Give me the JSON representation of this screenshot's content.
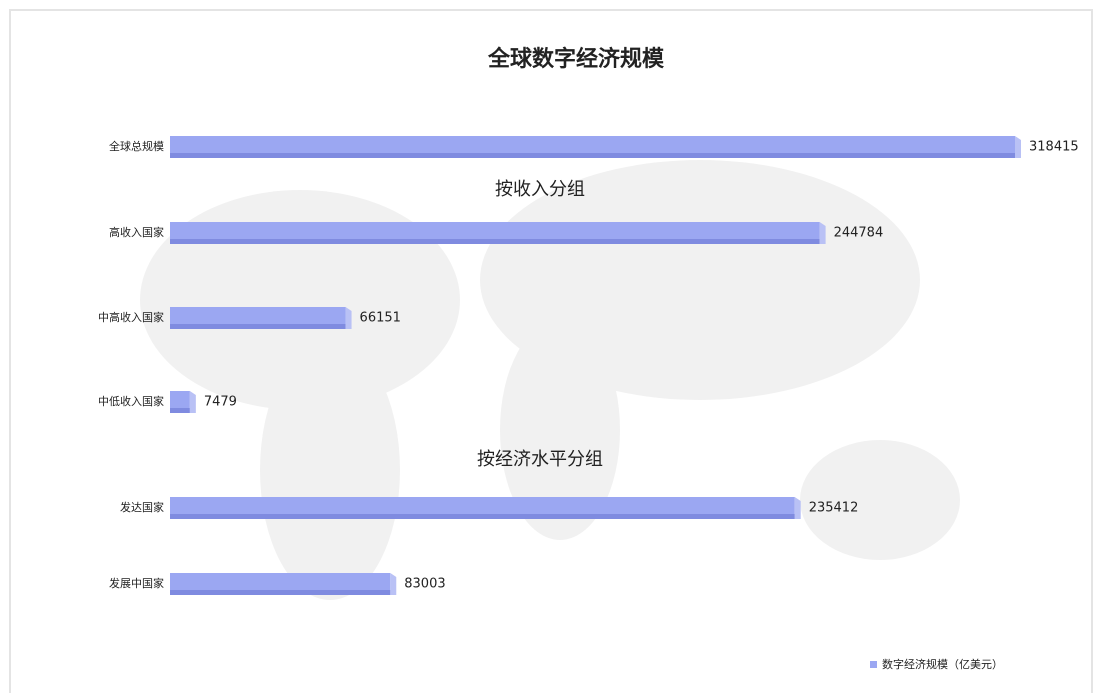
{
  "chart_data": {
    "type": "bar",
    "orientation": "horizontal",
    "title": "全球数字经济规模",
    "annotations": [
      "按收入分组",
      "按经济水平分组"
    ],
    "categories": [
      "全球总规模",
      "高收入国家",
      "中高收入国家",
      "中低收入国家",
      "发达国家",
      "发展中国家"
    ],
    "series": [
      {
        "name": "数字经济规模（亿美元）",
        "color": "#9ba7f2",
        "values": [
          318415,
          244784,
          66151,
          7479,
          235412,
          83003
        ]
      }
    ],
    "legend": "bottom-right"
  }
}
